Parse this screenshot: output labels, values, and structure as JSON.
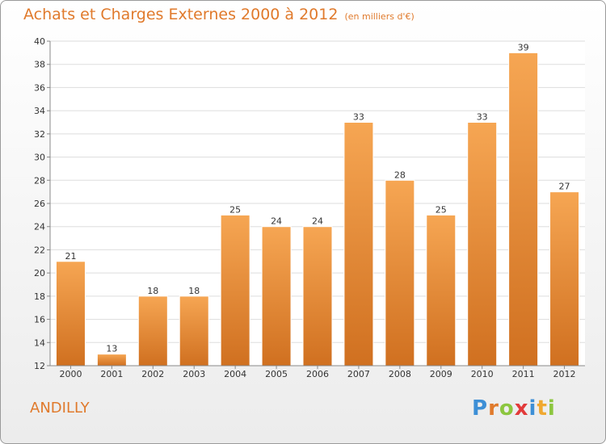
{
  "header": {
    "title": "Achats et Charges Externes 2000 à 2012",
    "subtitle": "(en milliers d'€)"
  },
  "footer": {
    "town": "ANDILLY",
    "logo_letters": [
      "P",
      "r",
      "o",
      "x",
      "i",
      "t",
      "i"
    ],
    "logo_colors": [
      "#3d8fd6",
      "#e07a2c",
      "#8cc63f",
      "#e23a3a",
      "#3d8fd6",
      "#f0a830",
      "#8cc63f"
    ]
  },
  "colors": {
    "bar_top": "#f6a653",
    "bar_bottom": "#d07020",
    "title": "#e07a2c",
    "grid": "#dddddd"
  },
  "chart_data": {
    "type": "bar",
    "categories": [
      "2000",
      "2001",
      "2002",
      "2003",
      "2004",
      "2005",
      "2006",
      "2007",
      "2008",
      "2009",
      "2010",
      "2011",
      "2012"
    ],
    "values": [
      21,
      13,
      18,
      18,
      25,
      24,
      24,
      33,
      28,
      25,
      33,
      39,
      27
    ],
    "ylim": [
      12,
      40
    ],
    "yticks": [
      12,
      14,
      16,
      18,
      20,
      22,
      24,
      26,
      28,
      30,
      32,
      34,
      36,
      38,
      40
    ],
    "grid": true,
    "title": "Achats et Charges Externes 2000 à 2012",
    "subtitle": "(en milliers d'€)"
  }
}
